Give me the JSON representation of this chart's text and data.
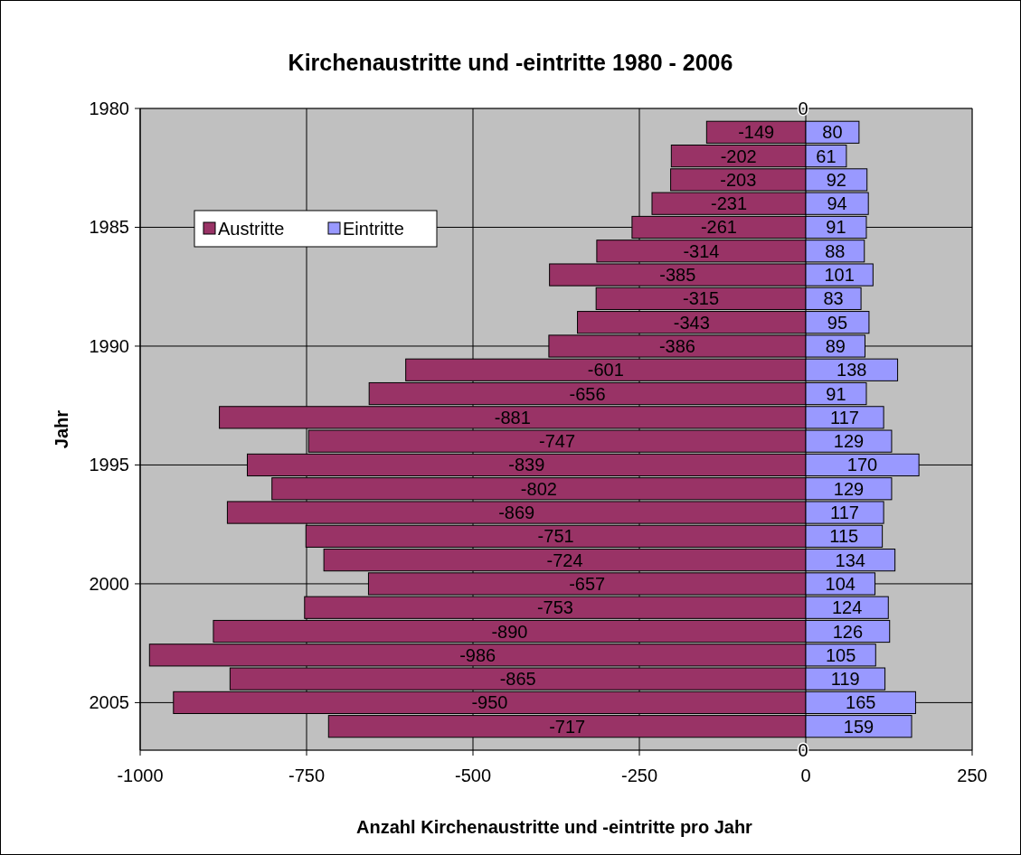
{
  "chart_data": {
    "type": "bar",
    "orientation": "horizontal",
    "title": "Kirchenaustritte und -eintritte 1980 - 2006",
    "xlabel": "Anzahl Kirchenaustritte und -eintritte pro Jahr",
    "ylabel": "Jahr",
    "x": [
      1981,
      1982,
      1983,
      1984,
      1985,
      1986,
      1987,
      1988,
      1989,
      1990,
      1991,
      1992,
      1993,
      1994,
      1995,
      1996,
      1997,
      1998,
      1999,
      2000,
      2001,
      2002,
      2003,
      2004,
      2005,
      2006
    ],
    "series": [
      {
        "name": "Austritte",
        "color": "#993366",
        "values": [
          -149,
          -202,
          -203,
          -231,
          -261,
          -314,
          -385,
          -315,
          -343,
          -386,
          -601,
          -656,
          -881,
          -747,
          -839,
          -802,
          -869,
          -751,
          -724,
          -657,
          -753,
          -890,
          -986,
          -865,
          -950,
          -717
        ]
      },
      {
        "name": "Eintritte",
        "color": "#9999ff",
        "values": [
          80,
          61,
          92,
          94,
          91,
          88,
          101,
          83,
          95,
          89,
          138,
          91,
          117,
          129,
          170,
          129,
          117,
          115,
          134,
          104,
          124,
          126,
          105,
          119,
          165,
          159
        ]
      }
    ],
    "xlim": [
      -1000,
      250
    ],
    "xticks": [
      -1000,
      -750,
      -500,
      -250,
      0,
      250
    ],
    "ylim": [
      2007,
      1980
    ],
    "yticks": [
      1980,
      1985,
      1990,
      1995,
      2000,
      2005
    ],
    "annotations": [
      "0",
      "0"
    ],
    "stacked": true,
    "data_labels": true,
    "grid": true,
    "legend": "top left"
  }
}
